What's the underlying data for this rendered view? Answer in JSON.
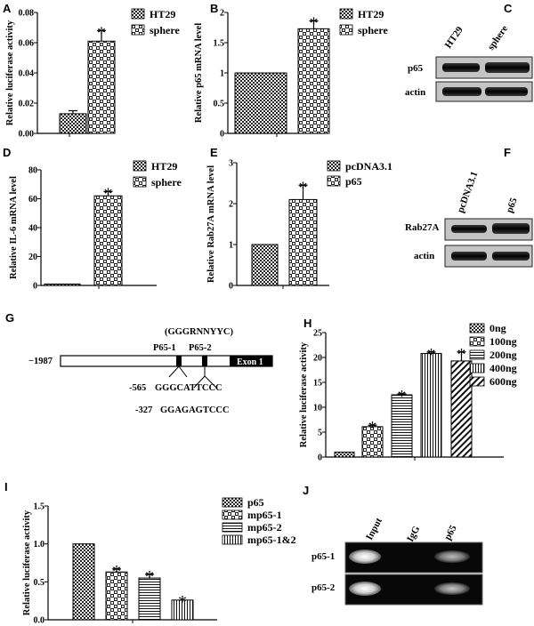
{
  "chart_data": [
    {
      "id": "A",
      "type": "bar",
      "panel_label": "A",
      "ylabel": "Relative luciferase activity",
      "categories": [
        "HT29",
        "sphere"
      ],
      "values": [
        0.013,
        0.061
      ],
      "errors": [
        0.002,
        0.007
      ],
      "significant": [
        false,
        true
      ],
      "ylim": [
        0,
        0.08
      ],
      "yticks": [
        "0.00",
        "0.02",
        "0.04",
        "0.06",
        "0.08"
      ],
      "legend": [
        "HT29",
        "sphere"
      ],
      "legend_position": "top-right",
      "patterns": [
        "dots",
        "checker"
      ]
    },
    {
      "id": "B",
      "type": "bar",
      "panel_label": "B",
      "ylabel": "Relative p65 mRNA level",
      "categories": [
        "HT29",
        "sphere"
      ],
      "values": [
        1.0,
        1.73
      ],
      "errors": [
        0,
        0.13
      ],
      "significant": [
        false,
        true
      ],
      "ylim": [
        0,
        2.0
      ],
      "yticks": [
        "0",
        "0.5",
        "1",
        "1.5",
        "2"
      ],
      "legend": [
        "HT29",
        "sphere"
      ],
      "legend_position": "top-right",
      "patterns": [
        "dots",
        "checker"
      ]
    },
    {
      "id": "D",
      "type": "bar",
      "panel_label": "D",
      "ylabel": "Relative IL-6 mRNA level",
      "categories": [
        "HT29",
        "sphere"
      ],
      "values": [
        1.0,
        62
      ],
      "errors": [
        0,
        3
      ],
      "significant": [
        false,
        true
      ],
      "ylim": [
        0,
        80
      ],
      "yticks": [
        "0",
        "20",
        "40",
        "60",
        "80"
      ],
      "legend": [
        "HT29",
        "sphere"
      ],
      "legend_position": "top-right",
      "patterns": [
        "dots",
        "checker"
      ]
    },
    {
      "id": "E",
      "type": "bar",
      "panel_label": "E",
      "ylabel": "Relative Rab27A mRNA level",
      "categories": [
        "pcDNA3.1",
        "p65"
      ],
      "values": [
        1.0,
        2.1
      ],
      "errors": [
        0,
        0.35
      ],
      "significant": [
        false,
        true
      ],
      "ylim": [
        0,
        3
      ],
      "yticks": [
        "0",
        "1",
        "2",
        "3"
      ],
      "legend": [
        "pcDNA3.1",
        "p65"
      ],
      "legend_position": "top-right",
      "patterns": [
        "dots",
        "checker"
      ]
    },
    {
      "id": "H",
      "type": "bar",
      "panel_label": "H",
      "ylabel": "Relative luciferase activity",
      "categories": [
        "0ng",
        "100ng",
        "200ng",
        "400ng",
        "600ng"
      ],
      "values": [
        1.0,
        6.1,
        12.5,
        20.8,
        19.3
      ],
      "errors": [
        0,
        0.3,
        0.2,
        0.3,
        1.8
      ],
      "significant": [
        false,
        true,
        true,
        true,
        true
      ],
      "ylim": [
        0,
        25
      ],
      "yticks": [
        "0",
        "5",
        "10",
        "15",
        "20",
        "25"
      ],
      "legend": [
        "0ng",
        "100ng",
        "200ng",
        "400ng",
        "600ng"
      ],
      "legend_position": "top-right",
      "patterns": [
        "dots",
        "checker",
        "hlines",
        "vlines",
        "diag"
      ]
    },
    {
      "id": "I",
      "type": "bar",
      "panel_label": "I",
      "ylabel": "Relative luciferase activity",
      "categories": [
        "p65",
        "mp65-1",
        "mp65-2",
        "mp65-1&2"
      ],
      "values": [
        1.0,
        0.63,
        0.55,
        0.26
      ],
      "errors": [
        0,
        0.04,
        0.05,
        0
      ],
      "significant": [
        false,
        true,
        true,
        true
      ],
      "ylim": [
        0,
        1.5
      ],
      "yticks": [
        "0.0",
        "0.5",
        "1.0",
        "1.5"
      ],
      "legend": [
        "p65",
        "mp65-1",
        "mp65-2",
        "mp65-1&2"
      ],
      "legend_position": "top-right",
      "patterns": [
        "dots",
        "checker",
        "hlines",
        "vlines"
      ]
    }
  ],
  "blots": {
    "C": {
      "label": "C",
      "lanes": [
        "HT29",
        "sphere"
      ],
      "rows": [
        "p65",
        "actin"
      ]
    },
    "F": {
      "label": "F",
      "lanes": [
        "pcDNA3.1",
        "p65"
      ],
      "rows": [
        "Rab27A",
        "actin"
      ]
    },
    "J": {
      "label": "J",
      "lanes": [
        "Input",
        "IgG",
        "p65"
      ],
      "rows": [
        "p65-1",
        "p65-2"
      ]
    }
  },
  "promoter": {
    "label": "G",
    "consensus": "(GGGRNNYYC)",
    "start": "−1987",
    "site1": "P65-1",
    "site2": "P65-2",
    "exon": "Exon 1",
    "seq1_pos": "-565",
    "seq1": "GGGCATTCCC",
    "seq2_pos": "-327",
    "seq2": "GGAGAGTCCC"
  },
  "colors": {
    "ink": "#000000",
    "blot_bg": "#bfbfbf",
    "gel_bg": "#080808"
  }
}
